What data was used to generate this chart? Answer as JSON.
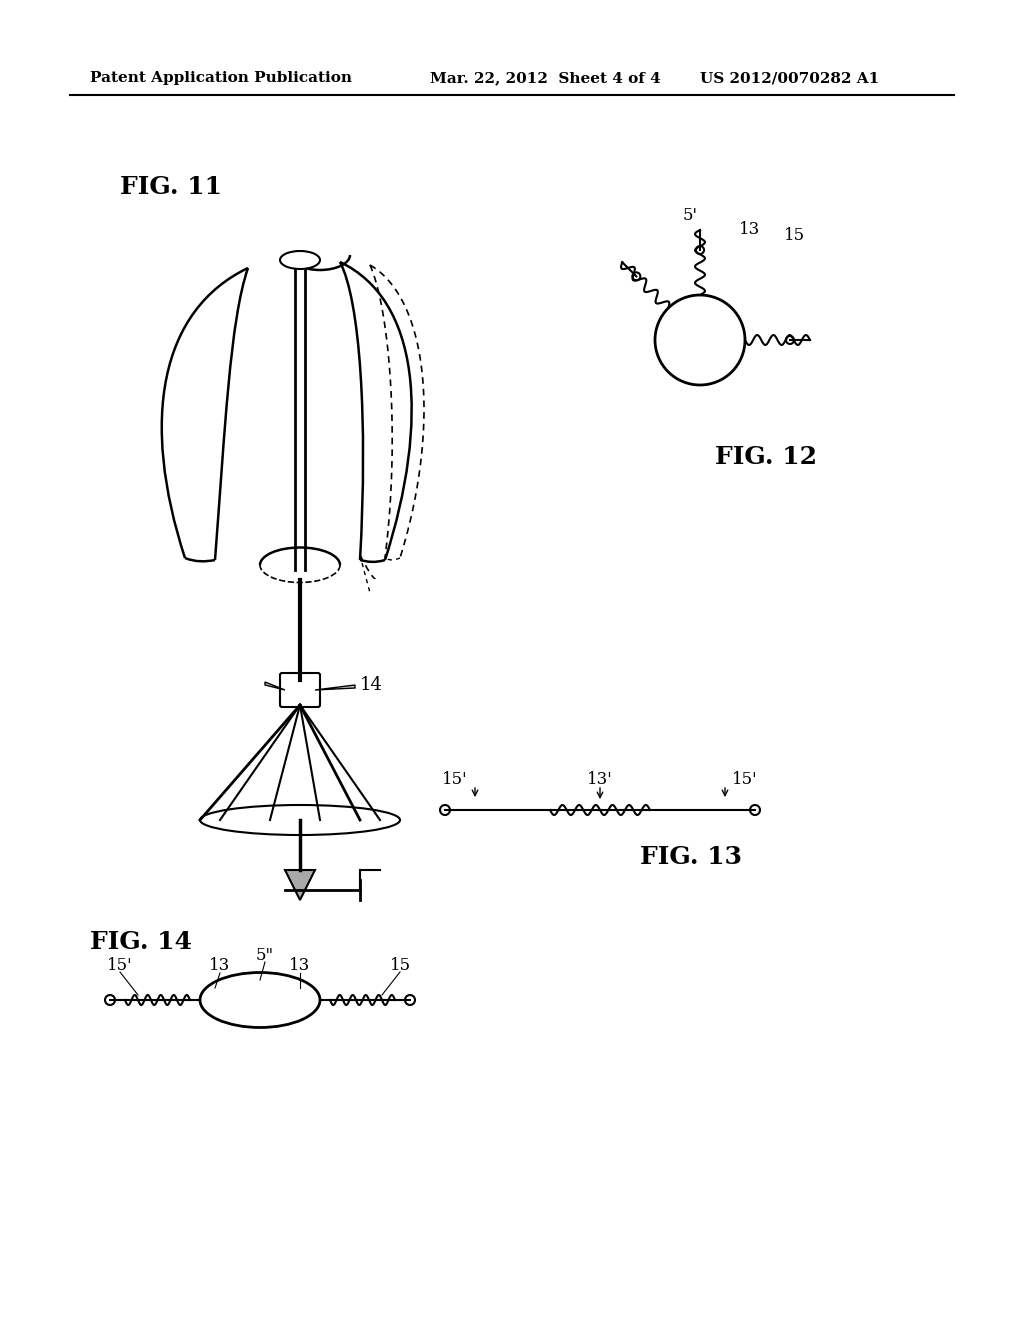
{
  "header_left": "Patent Application Publication",
  "header_mid": "Mar. 22, 2012  Sheet 4 of 4",
  "header_right": "US 2012/0070282 A1",
  "fig11_label": "FIG. 11",
  "fig12_label": "FIG. 12",
  "fig13_label": "FIG. 13",
  "fig14_label": "FIG. 14",
  "label_14": "14",
  "label_5prime": "5'",
  "label_13": "13",
  "label_15": "15",
  "label_13b": "13'",
  "label_15a": "15'",
  "label_15b": "15'",
  "label_15c": "15'",
  "label_13c": "13",
  "label_15d": "15",
  "label_13d": "13",
  "label_15e": "15",
  "label_5pp": "5\"",
  "bg_color": "#ffffff",
  "line_color": "#000000"
}
